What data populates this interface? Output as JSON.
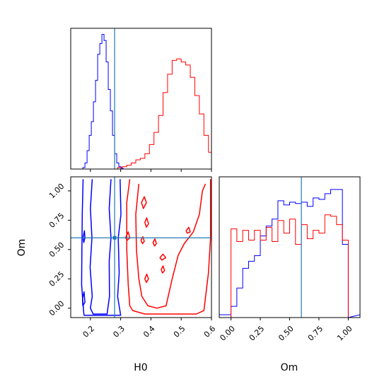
{
  "chart_data": {
    "type": "corner",
    "parameters": [
      "H0",
      "Om"
    ],
    "truth": {
      "H0": 0.28,
      "Om": 0.6
    },
    "series_colors": [
      "#0000ff",
      "#ff0000"
    ],
    "truth_color": "#1f77b4",
    "panels": {
      "h0_hist": {
        "type": "histogram",
        "xlim": [
          0.135,
          0.6
        ],
        "y_ticks_shown": false,
        "series": [
          {
            "color": "#0000ff",
            "bin_edges": [
              0.175,
              0.182,
              0.189,
              0.196,
              0.203,
              0.21,
              0.217,
              0.224,
              0.231,
              0.238,
              0.245,
              0.252,
              0.259,
              0.266,
              0.273,
              0.28,
              0.287,
              0.294,
              0.301,
              0.308,
              0.315
            ],
            "values": [
              0.01,
              0.04,
              0.12,
              0.22,
              0.31,
              0.44,
              0.58,
              0.75,
              0.82,
              0.88,
              0.84,
              0.7,
              0.52,
              0.38,
              0.22,
              0.1,
              0.04,
              0.015,
              0.005,
              0
            ]
          },
          {
            "color": "#ff0000",
            "bin_edges": [
              0.29,
              0.305,
              0.32,
              0.335,
              0.35,
              0.365,
              0.38,
              0.395,
              0.41,
              0.425,
              0.44,
              0.455,
              0.47,
              0.485,
              0.5,
              0.515,
              0.53,
              0.545,
              0.56,
              0.575,
              0.59,
              0.6
            ],
            "values": [
              0.01,
              0.015,
              0.025,
              0.04,
              0.06,
              0.07,
              0.1,
              0.16,
              0.24,
              0.35,
              0.5,
              0.62,
              0.71,
              0.72,
              0.7,
              0.68,
              0.6,
              0.48,
              0.36,
              0.22,
              0.11
            ]
          }
        ]
      },
      "om_hist": {
        "type": "histogram",
        "xlim": [
          -0.1,
          1.1
        ],
        "x_ticks": [
          0.0,
          0.25,
          0.5,
          0.75,
          1.0
        ],
        "x_tick_labels": [
          "0.00",
          "0.25",
          "0.50",
          "0.75",
          "1.00"
        ],
        "y_ticks_shown": false,
        "series": [
          {
            "color": "#0000ff",
            "bin_edges": [
              0.0,
              0.05,
              0.1,
              0.15,
              0.2,
              0.25,
              0.3,
              0.35,
              0.4,
              0.45,
              0.5,
              0.55,
              0.6,
              0.65,
              0.7,
              0.75,
              0.8,
              0.85,
              0.9,
              0.95,
              1.0
            ],
            "values": [
              0.08,
              0.21,
              0.35,
              0.4,
              0.44,
              0.58,
              0.65,
              0.7,
              0.83,
              0.8,
              0.82,
              0.81,
              0.82,
              0.79,
              0.85,
              0.84,
              0.88,
              0.91,
              0.91,
              0.52
            ]
          },
          {
            "color": "#ff0000",
            "bin_edges": [
              0.0,
              0.05,
              0.1,
              0.15,
              0.2,
              0.25,
              0.3,
              0.35,
              0.4,
              0.45,
              0.5,
              0.55,
              0.6,
              0.65,
              0.7,
              0.75,
              0.8,
              0.85,
              0.9,
              0.95,
              1.0
            ],
            "values": [
              0.63,
              0.54,
              0.62,
              0.55,
              0.62,
              0.55,
              0.64,
              0.54,
              0.69,
              0.6,
              0.7,
              0.52,
              0.66,
              0.56,
              0.62,
              0.6,
              0.73,
              0.72,
              0.66,
              0.55
            ]
          }
        ]
      },
      "joint": {
        "type": "contour",
        "xlim": [
          0.135,
          0.6
        ],
        "ylim": [
          -0.08,
          1.12
        ],
        "x_ticks": [
          0.2,
          0.3,
          0.4,
          0.5,
          0.6
        ],
        "x_tick_labels": [
          "0.2",
          "0.3",
          "0.4",
          "0.5",
          "0.6"
        ],
        "y_ticks": [
          0.0,
          0.25,
          0.5,
          0.75,
          1.0
        ],
        "y_tick_labels": [
          "0.00",
          "0.25",
          "0.50",
          "0.75",
          "1.00"
        ],
        "contours": [
          {
            "color": "#0000ff",
            "points": [
              [
                0.176,
                1.1
              ],
              [
                0.173,
                0.8
              ],
              [
                0.172,
                0.5
              ],
              [
                0.171,
                0.2
              ],
              [
                0.177,
                -0.01
              ],
              [
                0.179,
                -0.06
              ],
              [
                0.3,
                -0.06
              ],
              [
                0.29,
                0.1
              ],
              [
                0.295,
                0.3
              ],
              [
                0.292,
                0.6
              ],
              [
                0.301,
                0.8
              ],
              [
                0.298,
                1.1
              ]
            ],
            "closed": false
          },
          {
            "color": "#0000ff",
            "points": [
              [
                0.206,
                1.1
              ],
              [
                0.2,
                0.85
              ],
              [
                0.205,
                0.6
              ],
              [
                0.199,
                0.35
              ],
              [
                0.206,
                0.1
              ],
              [
                0.2,
                0.0
              ],
              [
                0.209,
                -0.05
              ],
              [
                0.255,
                -0.05
              ],
              [
                0.263,
                0.1
              ],
              [
                0.262,
                0.4
              ],
              [
                0.268,
                0.6
              ],
              [
                0.262,
                0.85
              ],
              [
                0.268,
                1.1
              ]
            ],
            "closed": false
          },
          {
            "color": "#0000ff",
            "points": [
              [
                0.178,
                0.56
              ],
              [
                0.182,
                0.6
              ],
              [
                0.18,
                0.66
              ],
              [
                0.176,
                0.6
              ]
            ],
            "closed": true
          },
          {
            "color": "#0000ff",
            "points": [
              [
                0.175,
                0.02
              ],
              [
                0.182,
                0.05
              ],
              [
                0.179,
                0.14
              ],
              [
                0.174,
                0.08
              ]
            ],
            "closed": true
          },
          {
            "color": "#ff0000",
            "points": [
              [
                0.33,
                1.1
              ],
              [
                0.32,
                0.9
              ],
              [
                0.32,
                0.5
              ],
              [
                0.325,
                0.2
              ],
              [
                0.33,
                0.02
              ],
              [
                0.34,
                -0.02
              ],
              [
                0.38,
                -0.05
              ],
              [
                0.55,
                -0.05
              ],
              [
                0.575,
                -0.02
              ],
              [
                0.59,
                0.3
              ],
              [
                0.597,
                0.6
              ],
              [
                0.597,
                1.1
              ]
            ],
            "closed": false
          },
          {
            "color": "#ff0000",
            "points": [
              [
                0.36,
                1.06
              ],
              [
                0.35,
                0.8
              ],
              [
                0.352,
                0.5
              ],
              [
                0.36,
                0.25
              ],
              [
                0.37,
                0.1
              ],
              [
                0.39,
                0.02
              ],
              [
                0.42,
                0.0
              ],
              [
                0.45,
                0.02
              ],
              [
                0.47,
                0.25
              ],
              [
                0.49,
                0.45
              ],
              [
                0.51,
                0.55
              ],
              [
                0.54,
                0.65
              ],
              [
                0.56,
                0.8
              ],
              [
                0.57,
                1.0
              ],
              [
                0.58,
                1.06
              ]
            ],
            "closed": false
          },
          {
            "color": "#ff0000",
            "points": [
              [
                0.375,
                0.85
              ],
              [
                0.385,
                0.9
              ],
              [
                0.378,
                0.95
              ],
              [
                0.369,
                0.9
              ]
            ],
            "closed": true
          },
          {
            "color": "#ff0000",
            "points": [
              [
                0.322,
                0.58
              ],
              [
                0.33,
                0.6
              ],
              [
                0.325,
                0.65
              ],
              [
                0.316,
                0.6
              ]
            ],
            "closed": true
          },
          {
            "color": "#ff0000",
            "points": [
              [
                0.385,
                0.69
              ],
              [
                0.392,
                0.72
              ],
              [
                0.386,
                0.77
              ],
              [
                0.38,
                0.73
              ]
            ],
            "closed": true
          },
          {
            "color": "#ff0000",
            "points": [
              [
                0.412,
                0.53
              ],
              [
                0.418,
                0.55
              ],
              [
                0.413,
                0.59
              ],
              [
                0.407,
                0.56
              ]
            ],
            "closed": true
          },
          {
            "color": "#ff0000",
            "points": [
              [
                0.372,
                0.55
              ],
              [
                0.378,
                0.57
              ],
              [
                0.373,
                0.61
              ],
              [
                0.367,
                0.58
              ]
            ],
            "closed": true
          },
          {
            "color": "#ff0000",
            "points": [
              [
                0.436,
                0.41
              ],
              [
                0.449,
                0.43
              ],
              [
                0.44,
                0.46
              ],
              [
                0.43,
                0.43
              ]
            ],
            "closed": true
          },
          {
            "color": "#ff0000",
            "points": [
              [
                0.385,
                0.22
              ],
              [
                0.392,
                0.25
              ],
              [
                0.386,
                0.29
              ],
              [
                0.38,
                0.25
              ]
            ],
            "closed": true
          },
          {
            "color": "#ff0000",
            "points": [
              [
                0.438,
                0.3
              ],
              [
                0.445,
                0.32
              ],
              [
                0.44,
                0.36
              ],
              [
                0.434,
                0.33
              ]
            ],
            "closed": true
          },
          {
            "color": "#ff0000",
            "points": [
              [
                0.52,
                0.64
              ],
              [
                0.53,
                0.65
              ],
              [
                0.525,
                0.69
              ],
              [
                0.516,
                0.66
              ]
            ],
            "closed": true
          }
        ]
      }
    },
    "xlabels": {
      "joint": "H0",
      "om_hist": "Om"
    },
    "ylabels": {
      "joint": "Om"
    }
  }
}
